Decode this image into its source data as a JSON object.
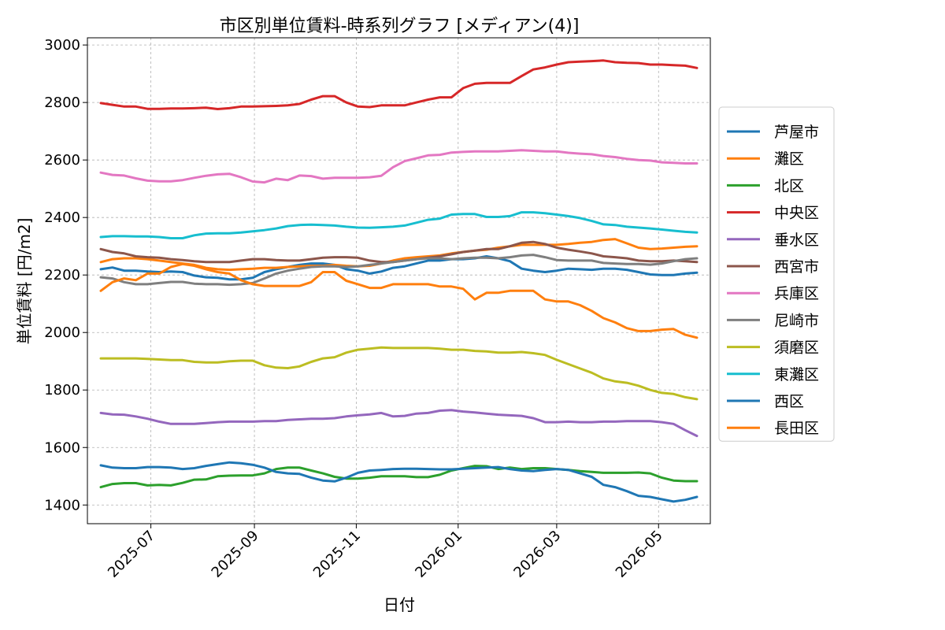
{
  "chart_data": {
    "type": "line",
    "title": "市区別単位賃料-時系列グラフ [メディアン(4)]",
    "xlabel": "日付",
    "ylabel": "単位賃料 [円/m2]",
    "xlim": [
      "2025-05-24",
      "2026-06-01"
    ],
    "ylim": [
      1335,
      3025
    ],
    "yticks": [
      1400,
      1600,
      1800,
      2000,
      2200,
      2400,
      2600,
      2800,
      3000
    ],
    "xticks": [
      "2025-07-01",
      "2025-09-01",
      "2025-11-01",
      "2026-01-01",
      "2026-03-01",
      "2026-05-01"
    ],
    "xtick_labels": [
      "2025-07",
      "2025-09",
      "2025-11",
      "2026-01",
      "2026-03",
      "2026-05"
    ],
    "grid": true,
    "legend_position": "right",
    "x": [
      "2025-06-01",
      "2025-06-08",
      "2025-06-15",
      "2025-06-22",
      "2025-06-29",
      "2025-07-06",
      "2025-07-13",
      "2025-07-20",
      "2025-07-27",
      "2025-08-03",
      "2025-08-10",
      "2025-08-17",
      "2025-08-24",
      "2025-08-31",
      "2025-09-07",
      "2025-09-14",
      "2025-09-21",
      "2025-09-28",
      "2025-10-05",
      "2025-10-12",
      "2025-10-19",
      "2025-10-26",
      "2025-11-02",
      "2025-11-09",
      "2025-11-16",
      "2025-11-23",
      "2025-11-30",
      "2025-12-07",
      "2025-12-14",
      "2025-12-21",
      "2025-12-28",
      "2026-01-04",
      "2026-01-11",
      "2026-01-18",
      "2026-01-25",
      "2026-02-01",
      "2026-02-08",
      "2026-02-15",
      "2026-02-22",
      "2026-03-01",
      "2026-03-08",
      "2026-03-15",
      "2026-03-22",
      "2026-03-29",
      "2026-04-05",
      "2026-04-12",
      "2026-04-19",
      "2026-04-26",
      "2026-05-03",
      "2026-05-10",
      "2026-05-17",
      "2026-05-24"
    ],
    "series": [
      {
        "name": "芦屋市",
        "color": "#1f77b4",
        "values": [
          2220,
          2226,
          2215,
          2215,
          2212,
          2210,
          2212,
          2210,
          2198,
          2192,
          2190,
          2185,
          2185,
          2190,
          2210,
          2220,
          2228,
          2235,
          2240,
          2240,
          2235,
          2220,
          2215,
          2205,
          2212,
          2225,
          2230,
          2240,
          2250,
          2250,
          2255,
          2255,
          2258,
          2265,
          2258,
          2248,
          2222,
          2215,
          2210,
          2215,
          2222,
          2220,
          2218,
          2222,
          2222,
          2218,
          2210,
          2202,
          2200,
          2200,
          2205,
          2208
        ]
      },
      {
        "name": "灘区",
        "color": "#ff7f0e",
        "values": [
          2245,
          2255,
          2258,
          2258,
          2255,
          2250,
          2245,
          2240,
          2235,
          2225,
          2220,
          2218,
          2220,
          2222,
          2225,
          2225,
          2228,
          2230,
          2232,
          2232,
          2235,
          2232,
          2230,
          2232,
          2240,
          2250,
          2258,
          2262,
          2265,
          2268,
          2275,
          2280,
          2285,
          2288,
          2295,
          2300,
          2305,
          2305,
          2305,
          2305,
          2308,
          2312,
          2315,
          2322,
          2325,
          2310,
          2295,
          2290,
          2292,
          2295,
          2298,
          2300
        ]
      },
      {
        "name": "北区",
        "color": "#2ca02c",
        "values": [
          1462,
          1473,
          1476,
          1476,
          1468,
          1470,
          1468,
          1477,
          1488,
          1489,
          1500,
          1502,
          1503,
          1503,
          1510,
          1525,
          1530,
          1530,
          1520,
          1510,
          1498,
          1492,
          1492,
          1495,
          1500,
          1500,
          1500,
          1497,
          1497,
          1505,
          1520,
          1528,
          1536,
          1535,
          1525,
          1530,
          1525,
          1528,
          1528,
          1525,
          1522,
          1518,
          1515,
          1512,
          1512,
          1512,
          1513,
          1510,
          1495,
          1485,
          1483,
          1483
        ]
      },
      {
        "name": "中央区",
        "color": "#d62728",
        "values": [
          2798,
          2792,
          2786,
          2786,
          2778,
          2778,
          2779,
          2779,
          2780,
          2782,
          2777,
          2780,
          2786,
          2786,
          2787,
          2788,
          2790,
          2795,
          2810,
          2822,
          2822,
          2800,
          2786,
          2784,
          2790,
          2790,
          2790,
          2800,
          2810,
          2818,
          2818,
          2850,
          2865,
          2868,
          2868,
          2868,
          2892,
          2915,
          2922,
          2932,
          2940,
          2942,
          2944,
          2946,
          2940,
          2938,
          2937,
          2932,
          2932,
          2930,
          2928,
          2920
        ]
      },
      {
        "name": "垂水区",
        "color": "#9467bd",
        "values": [
          1720,
          1715,
          1714,
          1708,
          1700,
          1690,
          1682,
          1682,
          1682,
          1685,
          1688,
          1690,
          1690,
          1690,
          1692,
          1692,
          1696,
          1698,
          1700,
          1700,
          1702,
          1708,
          1712,
          1715,
          1720,
          1708,
          1710,
          1718,
          1720,
          1728,
          1730,
          1725,
          1722,
          1718,
          1714,
          1712,
          1710,
          1702,
          1688,
          1688,
          1690,
          1688,
          1688,
          1690,
          1690,
          1692,
          1692,
          1692,
          1688,
          1682,
          1660,
          1640
        ]
      },
      {
        "name": "西宮市",
        "color": "#8c564b",
        "values": [
          2290,
          2280,
          2275,
          2265,
          2262,
          2260,
          2255,
          2252,
          2248,
          2245,
          2245,
          2245,
          2250,
          2255,
          2255,
          2252,
          2250,
          2250,
          2255,
          2260,
          2262,
          2262,
          2260,
          2250,
          2245,
          2245,
          2250,
          2255,
          2260,
          2265,
          2272,
          2280,
          2285,
          2290,
          2290,
          2300,
          2312,
          2315,
          2308,
          2295,
          2288,
          2282,
          2275,
          2265,
          2262,
          2258,
          2250,
          2248,
          2248,
          2250,
          2248,
          2245
        ]
      },
      {
        "name": "兵庫区",
        "color": "#e377c2",
        "values": [
          2556,
          2548,
          2546,
          2536,
          2528,
          2526,
          2526,
          2530,
          2538,
          2545,
          2550,
          2552,
          2540,
          2525,
          2522,
          2535,
          2530,
          2546,
          2544,
          2535,
          2538,
          2538,
          2538,
          2540,
          2545,
          2575,
          2596,
          2606,
          2616,
          2618,
          2626,
          2628,
          2630,
          2630,
          2630,
          2632,
          2634,
          2632,
          2630,
          2630,
          2625,
          2622,
          2620,
          2614,
          2610,
          2604,
          2600,
          2598,
          2592,
          2590,
          2588,
          2588
        ]
      },
      {
        "name": "尼崎市",
        "color": "#7f7f7f",
        "values": [
          2192,
          2188,
          2175,
          2168,
          2168,
          2172,
          2176,
          2176,
          2170,
          2168,
          2168,
          2166,
          2168,
          2172,
          2188,
          2205,
          2215,
          2222,
          2228,
          2230,
          2230,
          2228,
          2230,
          2235,
          2240,
          2245,
          2250,
          2255,
          2258,
          2258,
          2255,
          2258,
          2260,
          2260,
          2258,
          2262,
          2268,
          2270,
          2262,
          2252,
          2250,
          2250,
          2250,
          2242,
          2240,
          2238,
          2238,
          2236,
          2240,
          2248,
          2255,
          2258
        ]
      },
      {
        "name": "須磨区",
        "color": "#bcbd22",
        "values": [
          1910,
          1910,
          1910,
          1910,
          1908,
          1906,
          1904,
          1904,
          1898,
          1896,
          1896,
          1900,
          1902,
          1902,
          1886,
          1878,
          1876,
          1882,
          1898,
          1910,
          1914,
          1930,
          1940,
          1944,
          1948,
          1946,
          1946,
          1946,
          1946,
          1944,
          1940,
          1940,
          1936,
          1934,
          1930,
          1930,
          1932,
          1928,
          1922,
          1905,
          1890,
          1875,
          1860,
          1840,
          1830,
          1825,
          1815,
          1800,
          1790,
          1786,
          1775,
          1768
        ]
      },
      {
        "name": "東灘区",
        "color": "#17becf",
        "values": [
          2332,
          2335,
          2335,
          2334,
          2334,
          2332,
          2328,
          2328,
          2338,
          2344,
          2345,
          2345,
          2348,
          2352,
          2356,
          2362,
          2370,
          2374,
          2375,
          2374,
          2372,
          2368,
          2365,
          2364,
          2366,
          2368,
          2372,
          2382,
          2392,
          2396,
          2410,
          2412,
          2412,
          2402,
          2402,
          2405,
          2418,
          2418,
          2415,
          2410,
          2405,
          2398,
          2388,
          2376,
          2374,
          2368,
          2365,
          2362,
          2358,
          2354,
          2350,
          2348
        ]
      },
      {
        "name": "西区",
        "color": "#1f77b4",
        "values": [
          1538,
          1530,
          1528,
          1528,
          1532,
          1532,
          1530,
          1525,
          1528,
          1536,
          1542,
          1548,
          1545,
          1540,
          1530,
          1515,
          1510,
          1508,
          1495,
          1485,
          1482,
          1495,
          1512,
          1520,
          1522,
          1525,
          1526,
          1526,
          1525,
          1524,
          1524,
          1526,
          1528,
          1530,
          1532,
          1525,
          1520,
          1518,
          1522,
          1525,
          1522,
          1510,
          1498,
          1470,
          1462,
          1448,
          1432,
          1428,
          1420,
          1412,
          1418,
          1428
        ]
      },
      {
        "name": "長田区",
        "color": "#ff7f0e",
        "values": [
          2145,
          2175,
          2188,
          2182,
          2205,
          2205,
          2228,
          2238,
          2232,
          2220,
          2210,
          2205,
          2182,
          2168,
          2162,
          2162,
          2162,
          2162,
          2175,
          2210,
          2210,
          2180,
          2168,
          2155,
          2155,
          2168,
          2168,
          2168,
          2168,
          2160,
          2160,
          2152,
          2115,
          2138,
          2138,
          2145,
          2145,
          2145,
          2115,
          2108,
          2108,
          2095,
          2075,
          2050,
          2035,
          2015,
          2005,
          2005,
          2010,
          2012,
          1992,
          1982
        ]
      }
    ]
  }
}
